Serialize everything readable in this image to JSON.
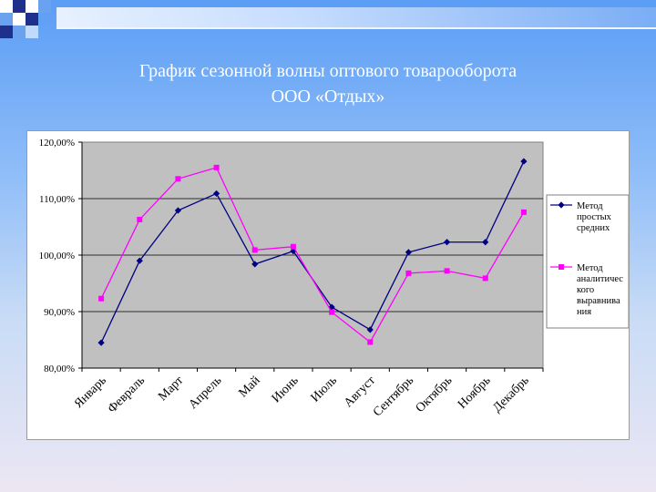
{
  "title_lines": [
    "График сезонной волны оптового товарооборота",
    "ООО «Отдых»"
  ],
  "colors": {
    "plot_area": "#c0c0c0",
    "series_1": "#000080",
    "series_2": "#ff00ff",
    "title_text": "#ffffff"
  },
  "chart_data": {
    "type": "line",
    "title": "",
    "xlabel": "",
    "ylabel": "",
    "ylim": [
      0.8,
      1.2
    ],
    "y_ticks": [
      "80,00%",
      "90,00%",
      "100,00%",
      "110,00%",
      "120,00%"
    ],
    "y_tick_values": [
      0.8,
      0.9,
      1.0,
      1.1,
      1.2
    ],
    "grid": true,
    "legend_position": "right",
    "categories": [
      "Январь",
      "Февраль",
      "Март",
      "Апрель",
      "Май",
      "Июнь",
      "Июль",
      "Август",
      "Сентябрь",
      "Октябрь",
      "Ноябрь",
      "Декабрь"
    ],
    "series": [
      {
        "name": "Метод простых средних",
        "legend_lines": [
          "Метод",
          "простых",
          "средних"
        ],
        "marker": "diamond",
        "color": "#000080",
        "values": [
          0.845,
          0.99,
          1.079,
          1.109,
          0.984,
          1.007,
          0.908,
          0.868,
          1.005,
          1.023,
          1.023,
          1.166
        ]
      },
      {
        "name": "Метод аналитического выравнивания",
        "legend_lines": [
          "Метод",
          "аналитичес",
          "кого",
          "выравнива",
          "ния"
        ],
        "marker": "square",
        "color": "#ff00ff",
        "values": [
          0.923,
          1.063,
          1.135,
          1.155,
          1.009,
          1.015,
          0.899,
          0.846,
          0.968,
          0.972,
          0.959,
          1.076
        ]
      }
    ]
  }
}
